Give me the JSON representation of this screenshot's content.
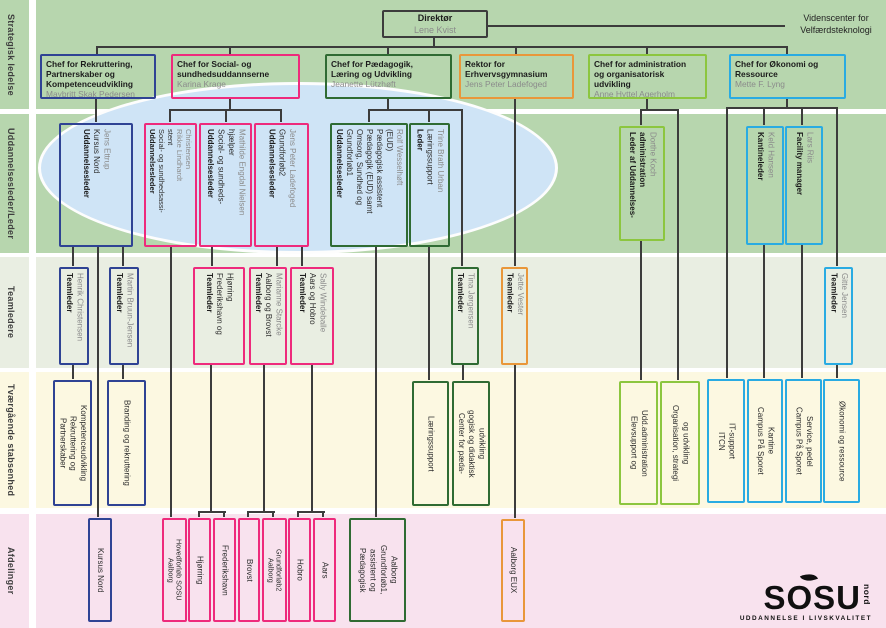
{
  "bands": [
    {
      "label": "Strategisk ledelse"
    },
    {
      "label": "Uddannelsesleder/Leder"
    },
    {
      "label": "Teamledere"
    },
    {
      "label": "Tværgående stabsenhed"
    },
    {
      "label": "Afdelinger"
    }
  ],
  "director": {
    "title": "Direktør",
    "name": "Lene Kvist"
  },
  "videnscenter": {
    "line1": "Videnscenter for",
    "line2": "Velfærdsteknologi"
  },
  "chefs": [
    {
      "color": "navy",
      "lines": [
        "Chef for Rekruttering,",
        "Partnerskaber og",
        "Kompetenceudvikling"
      ],
      "name": "Maybritt Skak Pedersen"
    },
    {
      "color": "pink",
      "lines": [
        "Chef for Social- og",
        "sundhedsuddannserne"
      ],
      "name": "Karina Krage"
    },
    {
      "color": "green",
      "lines": [
        "Chef for Pædagogik,",
        "Læring og Udvikling"
      ],
      "name": "Jeanette Lützhøft"
    },
    {
      "color": "orange",
      "lines": [
        "Rektor for",
        "Erhvervsgymnasium"
      ],
      "name": "Jens Peter Ladefoged"
    },
    {
      "color": "lightgreen",
      "lines": [
        "Chef for administration",
        "og organisatorisk",
        "udvikling"
      ],
      "name": "Anne Hyttel Agerholm"
    },
    {
      "color": "lightblue",
      "lines": [
        "Chef for Økonomi og",
        "Ressource"
      ],
      "name": "Mette F. Lyng"
    }
  ],
  "row2": [
    {
      "color": "navy",
      "bold": [
        "Uddannelsesleder"
      ],
      "dark": [
        "Kursus Nord"
      ],
      "gray": [
        "Jens Ettrup"
      ]
    },
    {
      "color": "pink",
      "bold": [
        "Uddannelsesleder"
      ],
      "dark": [
        "Social- og sundhedsassi-",
        "stent"
      ],
      "gray": [
        "Rikke Lindhardt",
        "Christensen"
      ]
    },
    {
      "color": "pink",
      "bold": [
        "Uddannelsesleder"
      ],
      "dark": [
        "Social- og sundheds-",
        "hjælper"
      ],
      "gray": [
        "Mathilde Engdal Nielsen"
      ]
    },
    {
      "color": "pink",
      "bold": [
        "Uddannelsesleder"
      ],
      "dark": [
        "Grundforløb2"
      ],
      "gray": [
        "Jens Peter Ladefoged"
      ]
    },
    {
      "color": "green",
      "bold": [
        "Uddannelsesleder"
      ],
      "dark": [
        "Grundforløb1",
        "Omsorg, Sundhed og",
        "Pædagogik (EUD) samt",
        "Pædagogisk assistent",
        "(EUD)"
      ],
      "gray": [
        "Rolf Wesselhøft"
      ]
    },
    {
      "color": "green",
      "bold": [
        "Leder"
      ],
      "dark": [
        "Læringssupport"
      ],
      "gray": [
        "Trine Brath Urban"
      ]
    },
    {
      "color": "lightgreen",
      "bold": [
        "Leder af Uddannelses-",
        "administration"
      ],
      "dark": [],
      "gray": [
        "Dorthe Koch"
      ]
    },
    {
      "color": "lightblue",
      "bold": [
        "Kantineleder"
      ],
      "dark": [],
      "gray": [
        "Keld Hansen"
      ]
    },
    {
      "color": "lightblue",
      "bold": [
        "Facility manager"
      ],
      "dark": [],
      "gray": [
        "Lars Riis"
      ]
    }
  ],
  "row3": [
    {
      "color": "navy",
      "bold": [
        "Teamleder"
      ],
      "dark": [],
      "gray": [
        "Henrik Christensen"
      ]
    },
    {
      "color": "navy",
      "bold": [
        "Teamleder"
      ],
      "dark": [],
      "gray": [
        "Martin Bruun-Jensen"
      ]
    },
    {
      "color": "pink",
      "bold": [
        "Teamleder"
      ],
      "dark": [
        "Frederikshavn og",
        "Hjørring"
      ],
      "gray": []
    },
    {
      "color": "pink",
      "bold": [
        "Teamleder"
      ],
      "dark": [
        "Aalborg og Brovst"
      ],
      "gray": [
        "Marianne Starcke"
      ]
    },
    {
      "color": "pink",
      "bold": [
        "Teamleder"
      ],
      "dark": [
        "Aars og Hobro"
      ],
      "gray": [
        "Sally Windeballe"
      ]
    },
    {
      "color": "green",
      "bold": [
        "Teamleder"
      ],
      "dark": [],
      "gray": [
        "Tina Jørgensen"
      ]
    },
    {
      "color": "orange",
      "bold": [
        "Teamleder"
      ],
      "dark": [],
      "gray": [
        "Jette Vester"
      ]
    },
    {
      "color": "lightblue",
      "bold": [
        "Teamleder"
      ],
      "dark": [],
      "gray": [
        "Gitte Jensen"
      ]
    }
  ],
  "row4": [
    {
      "color": "navy",
      "bold": [],
      "dark": [
        "Partnerskaber",
        "Rekruttering og",
        "Kompetenceudvikling"
      ],
      "gray": []
    },
    {
      "color": "navy",
      "bold": [],
      "dark": [
        "Branding og rekruttering"
      ],
      "gray": []
    },
    {
      "color": "green",
      "bold": [],
      "dark": [
        "Læringssupport"
      ],
      "gray": []
    },
    {
      "color": "green",
      "bold": [],
      "dark": [
        "Center for pæda-",
        "gogisk og didaktisk",
        "udvikling"
      ],
      "gray": []
    },
    {
      "color": "lightgreen",
      "bold": [],
      "dark": [
        "Elevsupport og",
        "Udd.administration"
      ],
      "gray": []
    },
    {
      "color": "lightgreen",
      "bold": [],
      "dark": [
        "Organisation, strategi",
        "og udvikling"
      ],
      "gray": []
    },
    {
      "color": "lightblue",
      "bold": [],
      "dark": [
        "ITCN",
        "IT-support"
      ],
      "gray": []
    },
    {
      "color": "lightblue",
      "bold": [],
      "dark": [
        "Campus På Sporet",
        "Kantine"
      ],
      "gray": []
    },
    {
      "color": "lightblue",
      "bold": [],
      "dark": [
        "Campus På Sporet",
        "Service, pedel"
      ],
      "gray": []
    },
    {
      "color": "lightblue",
      "bold": [],
      "dark": [
        "Økonomi og ressource"
      ],
      "gray": []
    }
  ],
  "row5": [
    {
      "color": "navy",
      "bold": [],
      "dark": [
        "Kursus Nord"
      ],
      "gray": []
    },
    {
      "color": "pink",
      "bold": [],
      "dark": [
        "Aalborg",
        "Hovedforløb SOSU"
      ],
      "gray": []
    },
    {
      "color": "pink",
      "bold": [],
      "dark": [
        "Hjørring"
      ],
      "gray": []
    },
    {
      "color": "pink",
      "bold": [],
      "dark": [
        "Frederikshavn"
      ],
      "gray": []
    },
    {
      "color": "pink",
      "bold": [],
      "dark": [
        "Brovst"
      ],
      "gray": []
    },
    {
      "color": "pink",
      "bold": [],
      "dark": [
        "Aalborg",
        "Grundforløb2"
      ],
      "gray": []
    },
    {
      "color": "pink",
      "bold": [],
      "dark": [
        "Hobro"
      ],
      "gray": []
    },
    {
      "color": "pink",
      "bold": [],
      "dark": [
        "Aars"
      ],
      "gray": []
    },
    {
      "color": "green",
      "bold": [],
      "dark": [
        "Pædagogisk",
        "assistent og",
        "Grundforløb1,",
        "Aalborg"
      ],
      "gray": []
    },
    {
      "color": "orange",
      "bold": [],
      "dark": [
        "Aalborg EUX"
      ],
      "gray": []
    }
  ],
  "logo": {
    "name": "SOSU",
    "sub": "nord",
    "tagline": "UDDANNELSE I LIVSKVALITET"
  },
  "colors": {
    "navy": "#2f4394",
    "pink": "#ee2a7c",
    "green": "#2f6b33",
    "orange": "#e9973a",
    "lightgreen": "#8cc63f",
    "lightblue": "#29abe2",
    "line": "#3c3c3c",
    "bandGreen": "#b7d6ae",
    "bandGray": "#e9eee2",
    "bandYellow": "#fcf8e1",
    "bandPink": "#f8e2ee",
    "ellipse": "#cfe4f6"
  }
}
